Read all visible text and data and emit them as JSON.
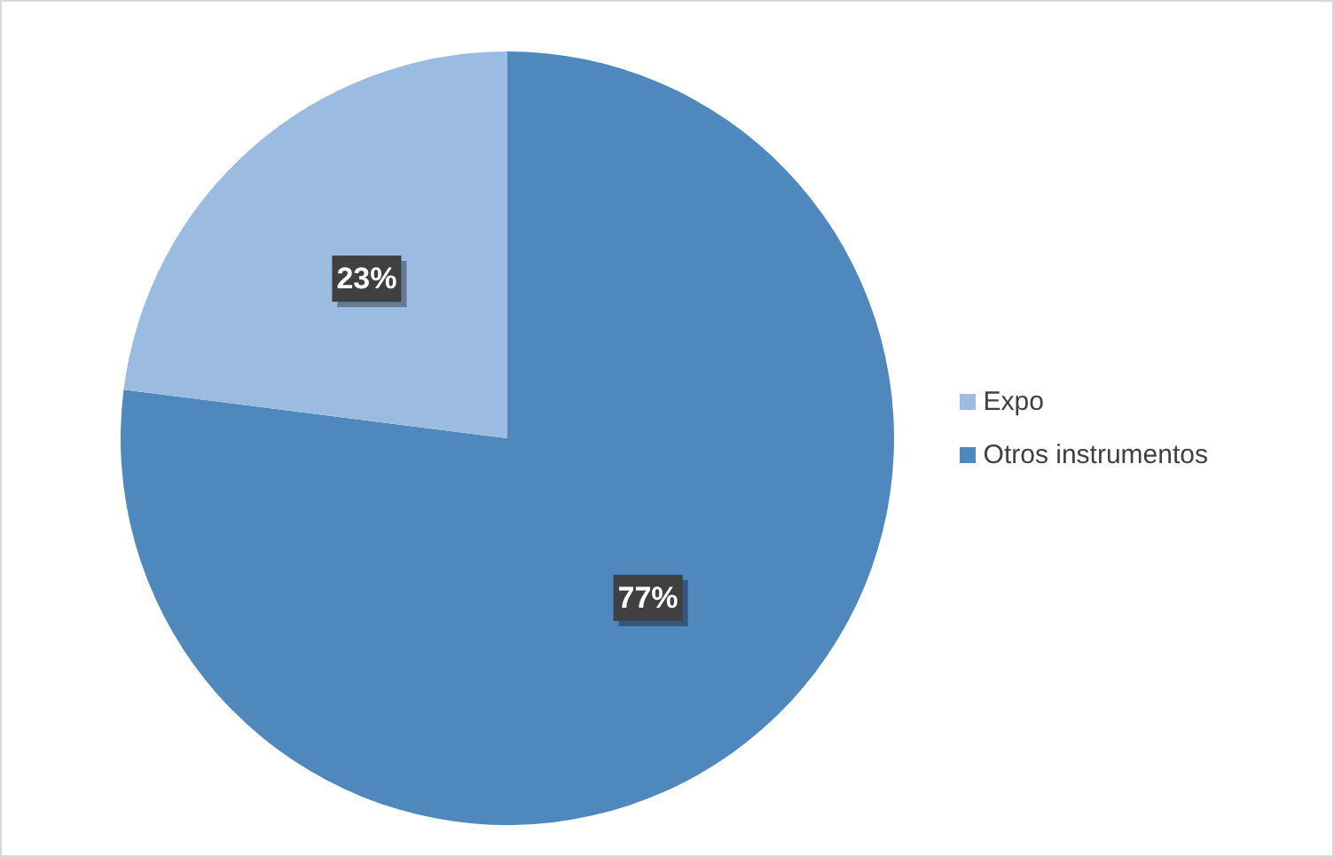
{
  "chart_data": {
    "type": "pie",
    "categories": [
      "Otros instrumentos",
      "Expo"
    ],
    "values": [
      77,
      23
    ],
    "colors": [
      "#4f88bd",
      "#9bbbe0"
    ],
    "value_labels": [
      "77%",
      "23%"
    ],
    "legend": "right"
  }
}
